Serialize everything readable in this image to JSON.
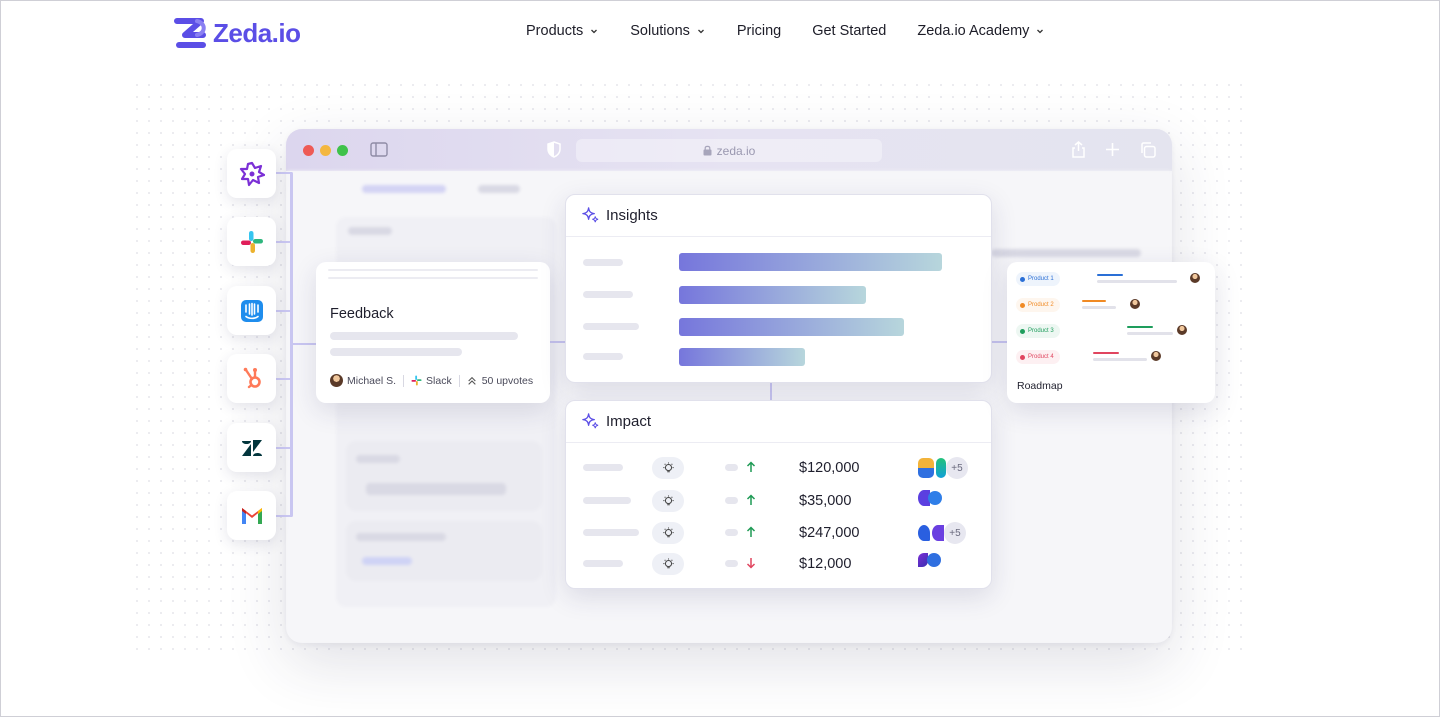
{
  "brand": {
    "name": "Zeda.io",
    "color": "#5b4ee6"
  },
  "nav": {
    "items": [
      {
        "label": "Products",
        "dropdown": true
      },
      {
        "label": "Solutions",
        "dropdown": true
      },
      {
        "label": "Pricing",
        "dropdown": false
      },
      {
        "label": "Get Started",
        "dropdown": false
      },
      {
        "label": "Zeda.io Academy",
        "dropdown": true
      }
    ]
  },
  "browser": {
    "url": "zeda.io"
  },
  "integrations": [
    {
      "name": "purple-burst-icon",
      "color": "#7b2fd6"
    },
    {
      "name": "slack-icon",
      "color": "#e01e5a"
    },
    {
      "name": "intercom-icon",
      "color": "#1f8ded"
    },
    {
      "name": "hubspot-icon",
      "color": "#ff7a59"
    },
    {
      "name": "zendesk-icon",
      "color": "#03363d"
    },
    {
      "name": "gmail-icon",
      "color": "#ea4335"
    }
  ],
  "feedback": {
    "title": "Feedback",
    "author": "Michael S.",
    "source": "Slack",
    "upvotes": "50 upvotes"
  },
  "insights": {
    "title": "Insights",
    "bar_levels": [
      0.9,
      0.64,
      0.77,
      0.43
    ]
  },
  "impact": {
    "title": "Impact",
    "rows": [
      {
        "trend": "up",
        "value": "$120,000",
        "extra": "+5"
      },
      {
        "trend": "up",
        "value": "$35,000",
        "extra": ""
      },
      {
        "trend": "up",
        "value": "$247,000",
        "extra": "+5"
      },
      {
        "trend": "down",
        "value": "$12,000",
        "extra": ""
      }
    ],
    "colors": {
      "up": "#1f9a55",
      "down": "#e0455f"
    }
  },
  "roadmap": {
    "title": "Roadmap",
    "products": [
      {
        "label": "Product 1",
        "color": "#2a6fd6"
      },
      {
        "label": "Product 2",
        "color": "#f08a24"
      },
      {
        "label": "Product 3",
        "color": "#1e9d5c"
      },
      {
        "label": "Product 4",
        "color": "#e0455f"
      }
    ]
  }
}
